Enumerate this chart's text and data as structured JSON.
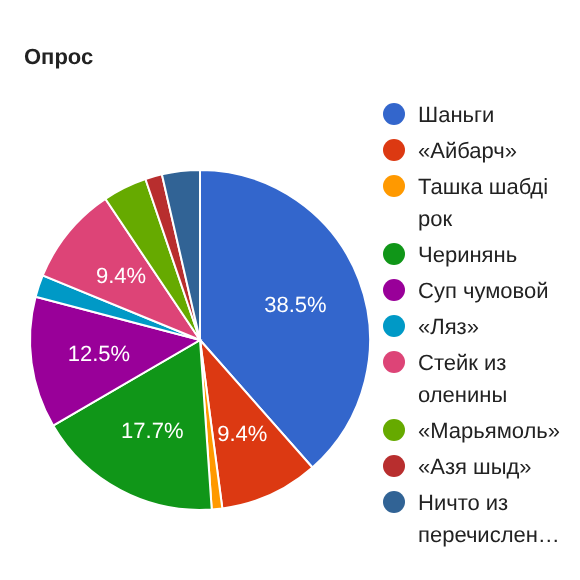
{
  "chart_data": {
    "type": "pie",
    "title": "Опрос",
    "categories": [
      "Шаньги",
      "«Айбарч»",
      "Ташка шабді рок",
      "Черинянь",
      "Суп чумовой",
      "«Ляз»",
      "Стейк из оленины",
      "«Марьямоль»",
      "«Азя шыд»",
      "Ничто из перечислен…"
    ],
    "values": [
      38.5,
      9.4,
      1.0,
      17.7,
      12.5,
      2.1,
      9.4,
      4.2,
      1.6,
      3.6
    ],
    "value_labels": [
      "38.5%",
      "9.4%",
      null,
      "17.7%",
      "12.5%",
      null,
      "9.4%",
      null,
      null,
      null
    ],
    "colors": [
      "#3366cc",
      "#dc3912",
      "#ff9900",
      "#109618",
      "#990099",
      "#0099c6",
      "#dd4477",
      "#66aa00",
      "#b82e2e",
      "#316395"
    ],
    "legend": "right"
  }
}
